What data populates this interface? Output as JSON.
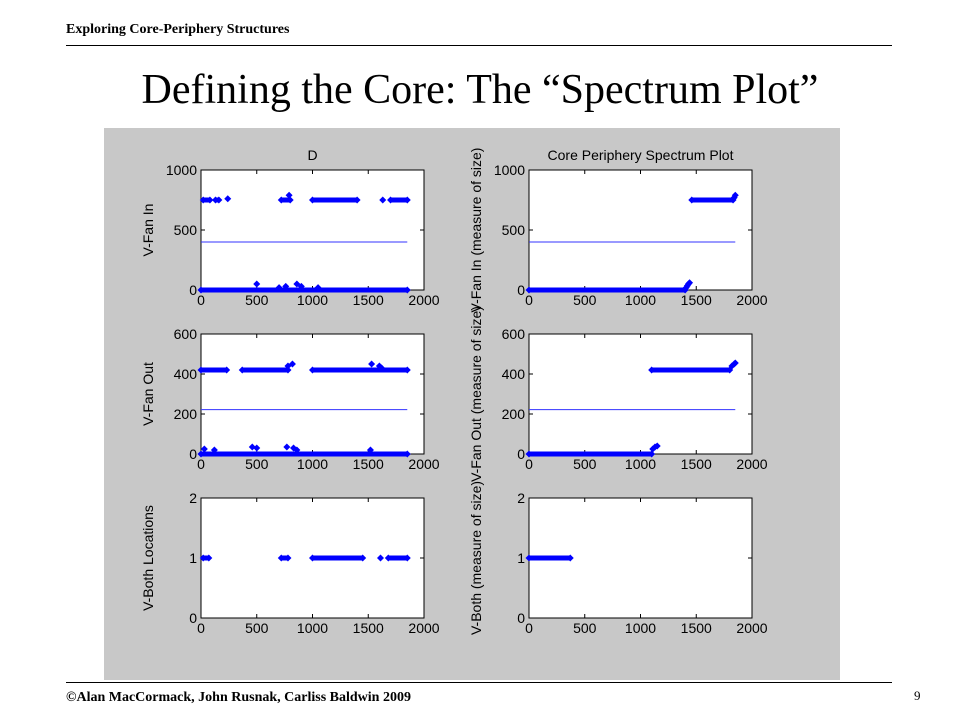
{
  "header": {
    "text": "Exploring Core-Periphery Structures"
  },
  "title": "Defining the Core: The “Spectrum Plot”",
  "footer": {
    "copyright": "©Alan MacCormack, John Rusnak, Carliss Baldwin 2009",
    "page": "9"
  },
  "colors": {
    "figure_bg": "#c8c8c8",
    "axes_bg": "#ffffff",
    "marker": "#0000ff",
    "line": "#3333ff"
  },
  "chart_data": [
    {
      "type": "scatter",
      "title": "D",
      "xlabel": "",
      "ylabel": "V-Fan In",
      "xlim": [
        0,
        2000
      ],
      "ylim": [
        0,
        1000
      ],
      "xticks": [
        "0",
        "500",
        "1000",
        "1500",
        "2000"
      ],
      "yticks": [
        "0",
        "500",
        "1000"
      ],
      "threshold": 400,
      "threshold_x": [
        0,
        1850
      ],
      "bands": [
        {
          "y": 750,
          "ranges": [
            [
              20,
              80
            ],
            [
              130,
              160
            ]
          ],
          "points": [
            [
              240,
              760
            ]
          ]
        },
        {
          "y": 750,
          "ranges": [
            [
              720,
              800
            ],
            [
              1000,
              1400
            ],
            [
              1700,
              1850
            ]
          ],
          "points": [
            [
              790,
              790
            ],
            [
              1630,
              750
            ]
          ]
        },
        {
          "y": 0,
          "ranges": [
            [
              0,
              1850
            ]
          ],
          "points": [
            [
              500,
              50
            ],
            [
              700,
              20
            ],
            [
              760,
              30
            ],
            [
              860,
              50
            ],
            [
              900,
              30
            ],
            [
              1050,
              20
            ]
          ]
        }
      ]
    },
    {
      "type": "scatter",
      "title": "Core Periphery Spectrum Plot",
      "xlabel": "",
      "ylabel": "V-Fan In (measure of size)",
      "xlim": [
        0,
        2000
      ],
      "ylim": [
        0,
        1000
      ],
      "xticks": [
        "0",
        "500",
        "1000",
        "1500",
        "2000"
      ],
      "yticks": [
        "0",
        "500",
        "1000"
      ],
      "threshold": 400,
      "threshold_x": [
        0,
        1850
      ],
      "bands": [
        {
          "y": 0,
          "ranges": [
            [
              0,
              1400
            ]
          ],
          "points": []
        },
        {
          "y": 750,
          "ranges": [
            [
              1460,
              1830
            ]
          ],
          "points": [
            [
              1410,
              20
            ],
            [
              1420,
              35
            ],
            [
              1430,
              50
            ],
            [
              1440,
              60
            ],
            [
              1840,
              770
            ],
            [
              1850,
              790
            ]
          ]
        }
      ]
    },
    {
      "type": "scatter",
      "title": "",
      "xlabel": "",
      "ylabel": "V-Fan Out",
      "xlim": [
        0,
        2000
      ],
      "ylim": [
        0,
        600
      ],
      "xticks": [
        "0",
        "500",
        "1000",
        "1500",
        "2000"
      ],
      "yticks": [
        "0",
        "200",
        "400",
        "600"
      ],
      "threshold": 222,
      "threshold_x": [
        0,
        1850
      ],
      "bands": [
        {
          "y": 420,
          "ranges": [
            [
              0,
              230
            ],
            [
              370,
              780
            ],
            [
              1000,
              1850
            ]
          ],
          "points": [
            [
              780,
              440
            ],
            [
              820,
              450
            ],
            [
              1530,
              450
            ],
            [
              1600,
              440
            ],
            [
              1620,
              430
            ]
          ]
        },
        {
          "y": 0,
          "ranges": [
            [
              0,
              1850
            ]
          ],
          "points": [
            [
              30,
              25
            ],
            [
              120,
              20
            ],
            [
              460,
              35
            ],
            [
              500,
              30
            ],
            [
              770,
              35
            ],
            [
              830,
              30
            ],
            [
              860,
              20
            ],
            [
              1520,
              20
            ]
          ]
        }
      ]
    },
    {
      "type": "scatter",
      "title": "",
      "xlabel": "",
      "ylabel": "V-Fan Out (measure of size)",
      "xlim": [
        0,
        2000
      ],
      "ylim": [
        0,
        600
      ],
      "xticks": [
        "0",
        "500",
        "1000",
        "1500",
        "2000"
      ],
      "yticks": [
        "0",
        "200",
        "400",
        "600"
      ],
      "threshold": 222,
      "threshold_x": [
        0,
        1850
      ],
      "bands": [
        {
          "y": 0,
          "ranges": [
            [
              0,
              1100
            ]
          ],
          "points": [
            [
              1110,
              25
            ],
            [
              1130,
              35
            ],
            [
              1150,
              40
            ]
          ]
        },
        {
          "y": 420,
          "ranges": [
            [
              1100,
              1800
            ]
          ],
          "points": [
            [
              1820,
              440
            ],
            [
              1840,
              450
            ],
            [
              1850,
              455
            ]
          ]
        }
      ]
    },
    {
      "type": "scatter",
      "title": "",
      "xlabel": "",
      "ylabel": "V-Both Locations",
      "xlim": [
        0,
        2000
      ],
      "ylim": [
        0,
        2
      ],
      "xticks": [
        "0",
        "500",
        "1000",
        "1500",
        "2000"
      ],
      "yticks": [
        "0",
        "1",
        "2"
      ],
      "bands": [
        {
          "y": 1,
          "ranges": [
            [
              20,
              70
            ],
            [
              720,
              780
            ],
            [
              1000,
              1450
            ],
            [
              1680,
              1850
            ]
          ],
          "points": [
            [
              1610,
              1
            ]
          ]
        }
      ]
    },
    {
      "type": "scatter",
      "title": "",
      "xlabel": "",
      "ylabel": "V-Both (measure of size)",
      "xlim": [
        0,
        2000
      ],
      "ylim": [
        0,
        2
      ],
      "xticks": [
        "0",
        "500",
        "1000",
        "1500",
        "2000"
      ],
      "yticks": [
        "0",
        "1",
        "2"
      ],
      "bands": [
        {
          "y": 1,
          "ranges": [
            [
              0,
              370
            ]
          ],
          "points": []
        }
      ]
    }
  ]
}
